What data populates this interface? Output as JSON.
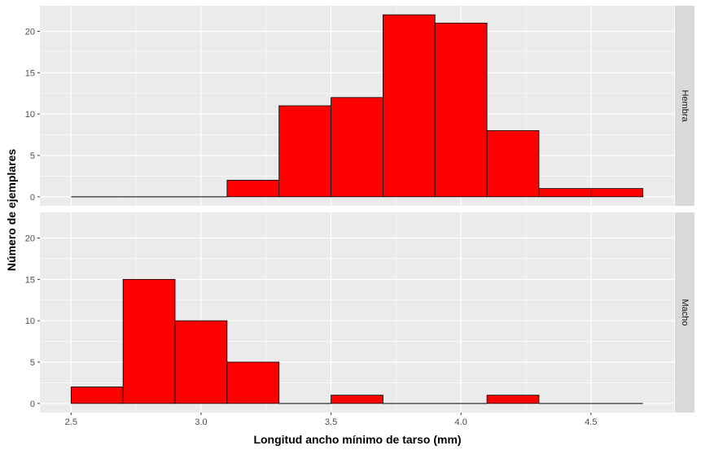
{
  "chart_data": {
    "type": "histogram",
    "xlabel": "Longitud ancho mínimo de tarso (mm)",
    "ylabel": "Número de ejemplares",
    "x_ticks": [
      "2.5",
      "3.0",
      "3.5",
      "4.0",
      "4.5"
    ],
    "y_ticks": [
      "0",
      "5",
      "10",
      "15",
      "20"
    ],
    "xlim": [
      2.38,
      4.82
    ],
    "ylim": [
      -1.1,
      23.1
    ],
    "bin_edges": [
      2.5,
      2.7,
      2.9,
      3.1,
      3.3,
      3.5,
      3.7,
      3.9,
      4.1,
      4.3,
      4.5,
      4.7
    ],
    "bar_fill": "#FF0000",
    "bar_outline": "#000000",
    "panel_background": "#EBEBEB",
    "strip_background": "#D9D9D9",
    "grid": true,
    "panels": [
      {
        "label": "Hembra",
        "counts": [
          0,
          0,
          0,
          2,
          11,
          12,
          22,
          21,
          8,
          1,
          1
        ]
      },
      {
        "label": "Macho",
        "counts": [
          2,
          15,
          10,
          5,
          0,
          1,
          0,
          0,
          1,
          0,
          0
        ]
      }
    ]
  }
}
